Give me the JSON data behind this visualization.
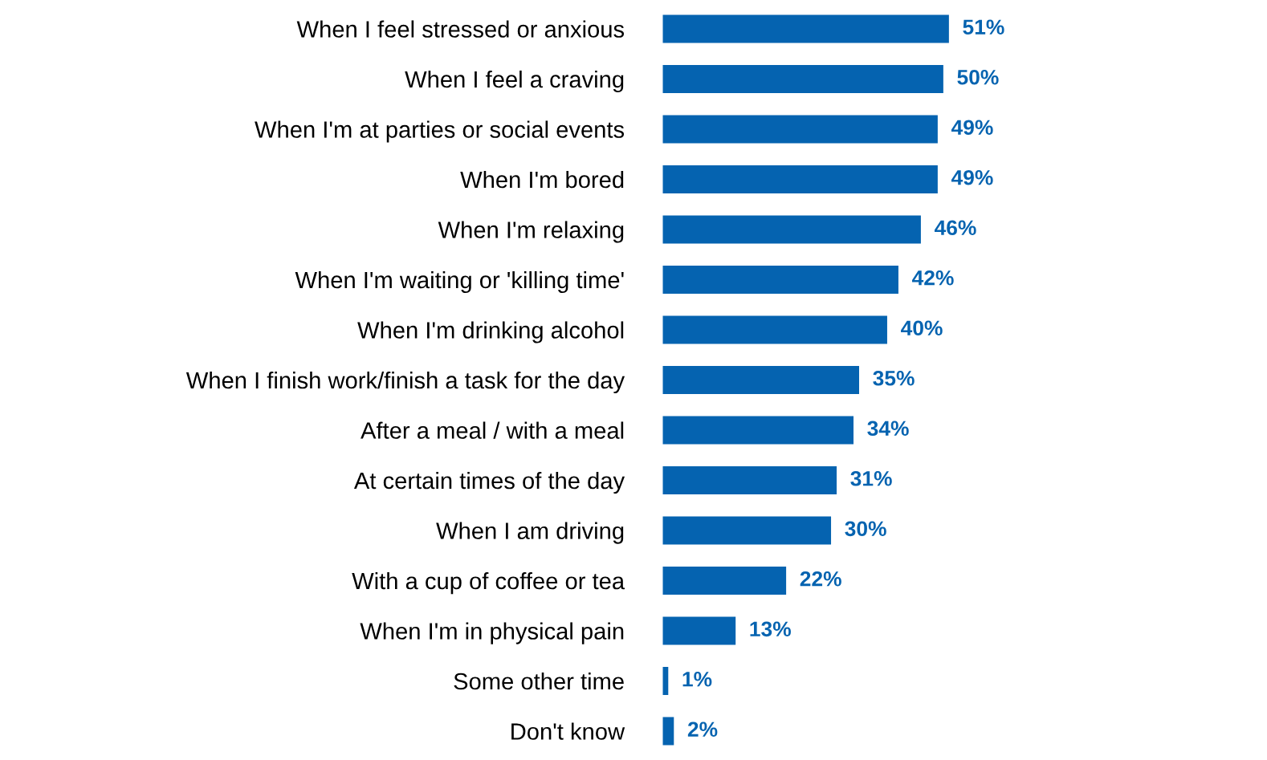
{
  "chart_data": {
    "type": "bar",
    "orientation": "horizontal",
    "categories": [
      "When I feel stressed or anxious",
      "When I feel a craving",
      "When I'm at parties or social events",
      "When I'm bored",
      "When I'm relaxing",
      "When I'm waiting or 'killing time'",
      "When I'm drinking alcohol",
      "When I finish work/finish a task for the day",
      "After a meal / with a meal",
      "At certain times of the day",
      "When I am driving",
      "With a cup of coffee or tea",
      "When I'm in physical pain",
      "Some other time",
      "Don't know"
    ],
    "values": [
      51,
      50,
      49,
      49,
      46,
      42,
      40,
      35,
      34,
      31,
      30,
      22,
      13,
      1,
      2
    ],
    "value_labels": [
      "51%",
      "50%",
      "49%",
      "49%",
      "46%",
      "42%",
      "40%",
      "35%",
      "34%",
      "31%",
      "30%",
      "22%",
      "13%",
      "1%",
      "2%"
    ],
    "color": "#0563b0",
    "tick_labels": "y",
    "grid": false,
    "legend": false
  }
}
